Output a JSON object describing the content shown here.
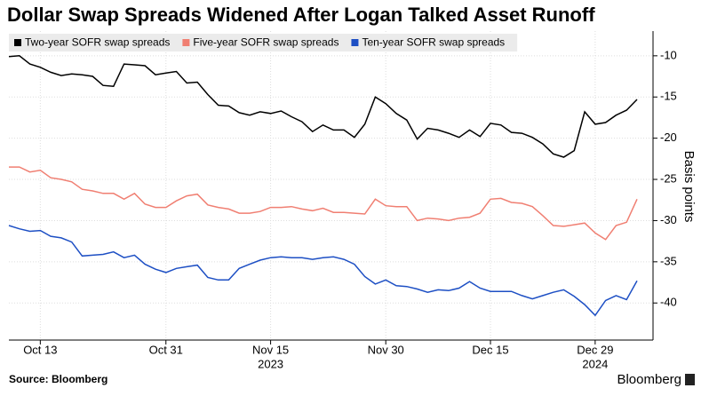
{
  "chart_data": {
    "type": "line",
    "title": "Dollar Swap Spreads Widened After Logan Talked Asset Runoff",
    "y_label": "Basis points",
    "source": "Source: Bloomberg",
    "brand": "Bloomberg",
    "categories": [
      null,
      null,
      null,
      "Oct 13",
      null,
      null,
      null,
      null,
      null,
      null,
      null,
      null,
      null,
      null,
      null,
      "Oct 31",
      null,
      null,
      null,
      null,
      null,
      null,
      null,
      null,
      null,
      "Nov 15",
      null,
      null,
      null,
      null,
      null,
      null,
      null,
      null,
      null,
      null,
      "Nov 30",
      null,
      null,
      null,
      null,
      null,
      null,
      null,
      null,
      null,
      "Dec 15",
      null,
      null,
      null,
      null,
      null,
      null,
      null,
      null,
      null,
      "Dec 29",
      null,
      null,
      null,
      null
    ],
    "year_labels": [
      "2023",
      "2024"
    ],
    "series": [
      {
        "name": "Two-year SOFR swap spreads",
        "color": "#000000",
        "values": [
          -10.1,
          -10,
          -11,
          -11.4,
          -12,
          -12.4,
          -12.2,
          -12.3,
          -12.5,
          -13.6,
          -13.7,
          -11,
          -11.1,
          -11.2,
          -12.3,
          -12.1,
          -11.9,
          -13.3,
          -13.2,
          -14.7,
          -16,
          -16.1,
          -16.9,
          -17.2,
          -16.8,
          -17,
          -16.7,
          -17.4,
          -18,
          -19.2,
          -18.4,
          -19,
          -19,
          -19.9,
          -18.3,
          -15,
          -15.8,
          -17,
          -17.8,
          -20.1,
          -18.8,
          -19,
          -19.4,
          -19.9,
          -19,
          -19.8,
          -18.2,
          -18.4,
          -19.3,
          -19.4,
          -19.9,
          -20.7,
          -21.9,
          -22.3,
          -21.5,
          -16.8,
          -18.3,
          -18.1,
          -17.2,
          -16.6,
          -15.3
        ]
      },
      {
        "name": "Five-year SOFR swap spreads",
        "color": "#f07f72",
        "values": [
          -23.5,
          -23.5,
          -24.1,
          -23.9,
          -24.8,
          -25,
          -25.3,
          -26.2,
          -26.4,
          -26.7,
          -26.7,
          -27.4,
          -26.7,
          -28,
          -28.4,
          -28.4,
          -27.6,
          -27,
          -26.8,
          -28.1,
          -28.4,
          -28.6,
          -29.1,
          -29.1,
          -28.9,
          -28.4,
          -28.4,
          -28.3,
          -28.6,
          -28.8,
          -28.5,
          -29,
          -29,
          -29.1,
          -29.2,
          -27.4,
          -28.2,
          -28.3,
          -28.3,
          -30,
          -29.7,
          -29.8,
          -30,
          -29.7,
          -29.6,
          -29.1,
          -27.4,
          -27.3,
          -27.8,
          -27.9,
          -28.3,
          -29.4,
          -30.6,
          -30.7,
          -30.5,
          -30.3,
          -31.5,
          -32.3,
          -30.6,
          -30.2,
          -27.4
        ]
      },
      {
        "name": "Ten-year SOFR swap spreads",
        "color": "#1d4fc4",
        "values": [
          -30.6,
          -31,
          -31.3,
          -31.2,
          -31.9,
          -32.1,
          -32.6,
          -34.3,
          -34.2,
          -34.1,
          -33.8,
          -34.5,
          -34.2,
          -35.3,
          -35.9,
          -36.3,
          -35.8,
          -35.6,
          -35.4,
          -36.9,
          -37.2,
          -37.2,
          -35.8,
          -35.3,
          -34.8,
          -34.5,
          -34.4,
          -34.5,
          -34.5,
          -34.7,
          -34.5,
          -34.4,
          -34.7,
          -35.3,
          -36.8,
          -37.7,
          -37.2,
          -37.9,
          -38,
          -38.3,
          -38.7,
          -38.4,
          -38.5,
          -38.2,
          -37.4,
          -38.2,
          -38.6,
          -38.6,
          -38.6,
          -39.1,
          -39.5,
          -39.1,
          -38.7,
          -38.4,
          -39.2,
          -40.2,
          -41.5,
          -39.7,
          -39.1,
          -39.6,
          -37.3
        ]
      }
    ],
    "ylim": [
      -44.5,
      -7
    ],
    "yticks": [
      -10,
      -15,
      -20,
      -25,
      -30,
      -35,
      -40
    ],
    "legend": "top-left"
  }
}
